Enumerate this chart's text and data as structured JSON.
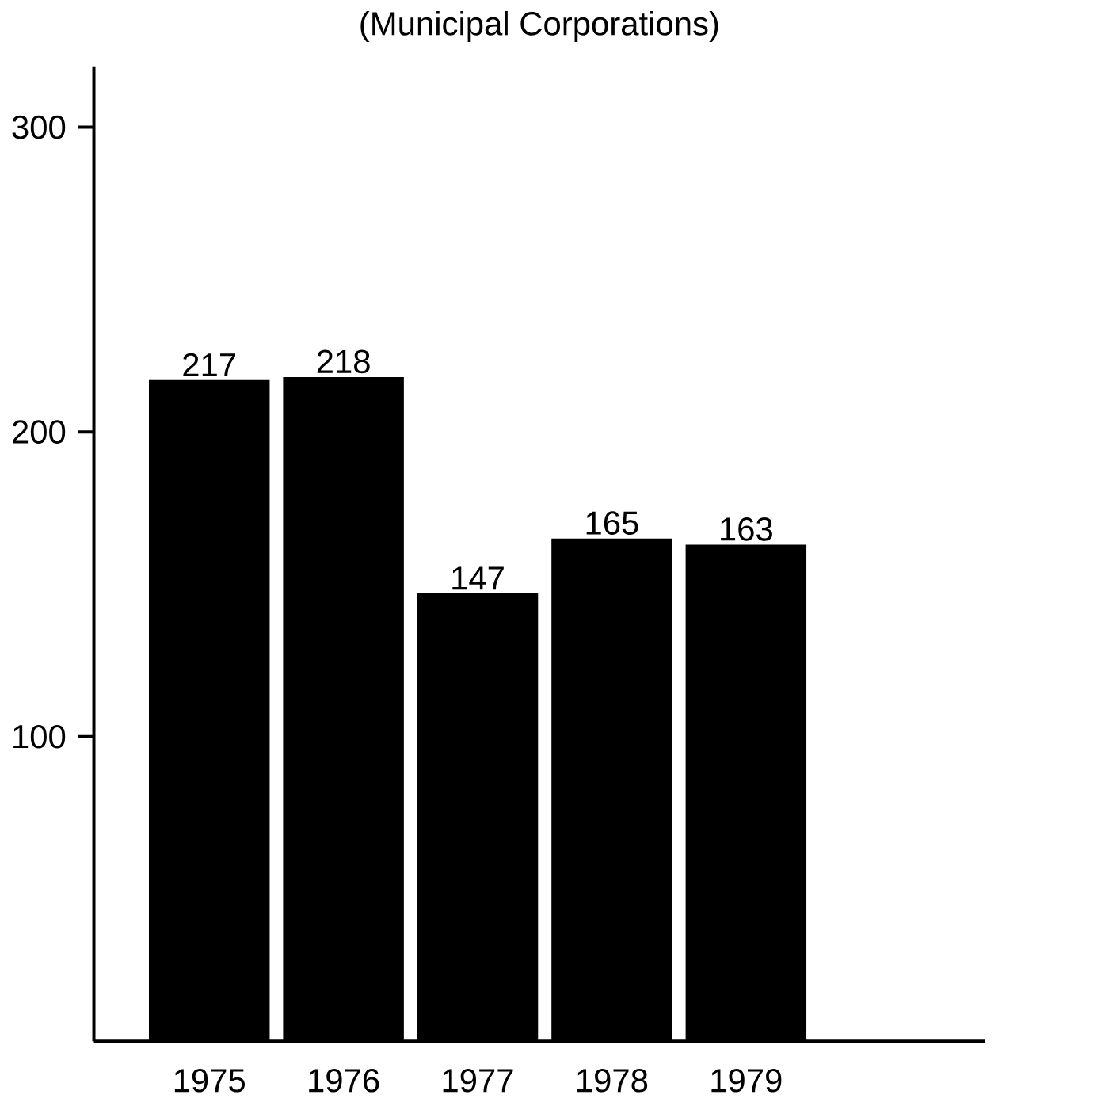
{
  "chart_data": {
    "type": "bar",
    "title": "(Municipal Corporations)",
    "categories": [
      "1975",
      "1976",
      "1977",
      "1978",
      "1979"
    ],
    "values": [
      217,
      218,
      147,
      165,
      163
    ],
    "color": "#000000",
    "ylim": [
      0,
      320
    ],
    "yticks": [
      100,
      200,
      300
    ],
    "data_labels": true,
    "grid": false
  }
}
